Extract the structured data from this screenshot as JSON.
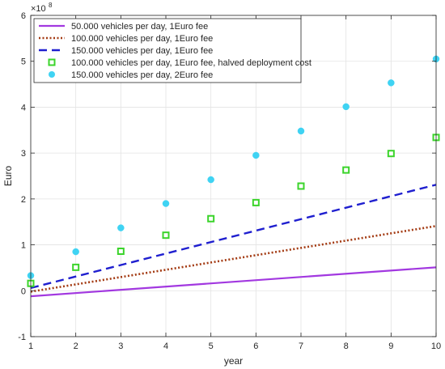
{
  "chart_data": {
    "type": "line",
    "title": "",
    "xlabel": "year",
    "ylabel": "Euro",
    "y_exponent_label": "×10",
    "y_exponent_power": "8",
    "xlim": [
      1,
      10
    ],
    "ylim": [
      -1,
      6
    ],
    "y_scale": 100000000,
    "xticks": [
      1,
      2,
      3,
      4,
      5,
      6,
      7,
      8,
      9,
      10
    ],
    "yticks": [
      -1,
      0,
      1,
      2,
      3,
      4,
      5,
      6
    ],
    "grid": true,
    "legend_position": "top-left",
    "series": [
      {
        "name": "50.000 vehicles per day, 1Euro fee",
        "style": "solid-line",
        "color": "#a238e0",
        "x": [
          1,
          10
        ],
        "y": [
          -0.12,
          0.51
        ]
      },
      {
        "name": "100.000 vehicles per day, 1Euro fee",
        "style": "dotted-line",
        "color": "#a33a12",
        "x": [
          1,
          10
        ],
        "y": [
          -0.02,
          1.41
        ]
      },
      {
        "name": "150.000 vehicles  per day, 1Euro fee",
        "style": "dashed-line",
        "color": "#1f1fcf",
        "x": [
          1,
          10
        ],
        "y": [
          0.06,
          2.31
        ]
      },
      {
        "name": "100.000 vehicles per day, 1Euro fee, halved deployment cost",
        "style": "square-markers",
        "color": "#3bd42b",
        "x": [
          1,
          2,
          3,
          4,
          5,
          6,
          7,
          8,
          9,
          10
        ],
        "y": [
          0.16,
          0.51,
          0.86,
          1.21,
          1.57,
          1.92,
          2.28,
          2.63,
          2.99,
          3.34
        ]
      },
      {
        "name": "150.000 vehicles per day, 2Euro fee",
        "style": "circle-markers",
        "color": "#3fd3f3",
        "x": [
          1,
          2,
          3,
          4,
          5,
          6,
          7,
          8,
          9,
          10
        ],
        "y": [
          0.33,
          0.85,
          1.37,
          1.9,
          2.42,
          2.95,
          3.48,
          4.01,
          4.53,
          5.05
        ]
      }
    ]
  }
}
